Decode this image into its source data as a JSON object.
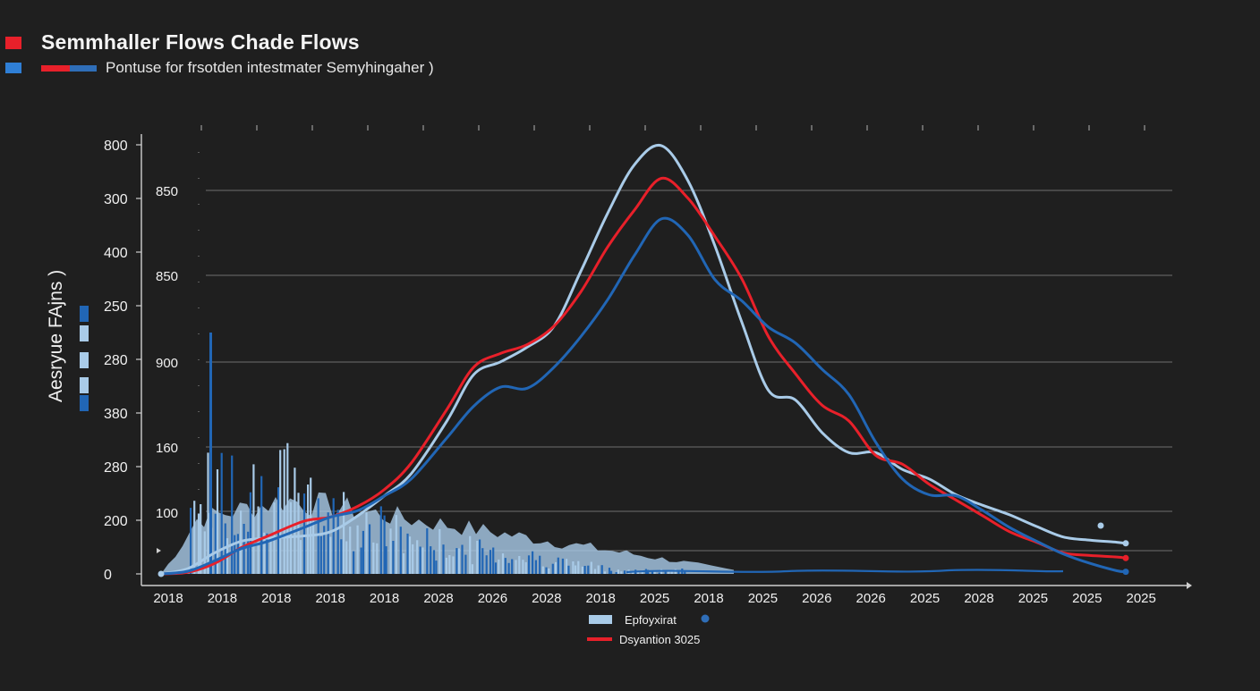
{
  "header": {
    "title": "Semmhaller Flows Chade Flows",
    "subtitle": "Pontuse for frsotden intestmater Semyhingaher )"
  },
  "colors": {
    "background": "#1f1f1f",
    "red": "#e8202a",
    "light_blue": "#a9cbe8",
    "dark_blue": "#2166b5",
    "grid": "#8a8a8a",
    "text": "#f0f0f0"
  },
  "chart_data": {
    "type": "line",
    "title": "Semmhaller Flows Chade Flows",
    "subtitle": "Pontuse for frsotden intestmater Semyhingaher )",
    "ylabel": "Aesryue FAjns )",
    "xlabel": "",
    "ylim": [
      0,
      800
    ],
    "y_outer_ticks": [
      "0",
      "200",
      "280",
      "380",
      "280",
      "250",
      "400",
      "300",
      "800"
    ],
    "y_inner_ticks": [
      "100",
      "160",
      "900",
      "850",
      "850"
    ],
    "x_ticks": [
      "2018",
      "2018",
      "2018",
      "2018",
      "2018",
      "2028",
      "2026",
      "2028",
      "2018",
      "2025",
      "2018",
      "2025",
      "2026",
      "2026",
      "2025",
      "2028",
      "2025",
      "2025",
      "2025"
    ],
    "x": [
      0,
      30,
      60,
      90,
      120,
      160,
      190,
      220,
      250,
      280,
      320,
      350,
      380,
      410,
      440,
      470,
      500,
      530,
      560,
      590,
      620,
      650,
      680,
      710,
      740,
      770,
      800,
      830,
      860,
      890,
      920,
      950,
      980,
      1010,
      1040,
      1070,
      1080
    ],
    "series": [
      {
        "name": "light",
        "color": "#a9cbe8",
        "values": [
          0,
          10,
          40,
          62,
          68,
          72,
          80,
          110,
          148,
          190,
          290,
          378,
          402,
          430,
          470,
          574,
          684,
          776,
          812,
          745,
          622,
          478,
          348,
          330,
          268,
          230,
          230,
          198,
          180,
          150,
          130,
          112,
          90,
          70,
          64,
          60,
          58
        ]
      },
      {
        "name": "red",
        "color": "#e8202a",
        "values": [
          0,
          3,
          20,
          50,
          72,
          100,
          108,
          128,
          160,
          210,
          312,
          392,
          418,
          435,
          470,
          535,
          620,
          690,
          750,
          712,
          640,
          560,
          450,
          380,
          320,
          290,
          225,
          208,
          170,
          140,
          110,
          80,
          60,
          40,
          35,
          32,
          30
        ]
      },
      {
        "name": "dark",
        "color": "#2166b5",
        "values": [
          0,
          5,
          25,
          48,
          62,
          88,
          108,
          120,
          148,
          180,
          258,
          318,
          354,
          352,
          392,
          450,
          520,
          604,
          673,
          642,
          558,
          518,
          468,
          438,
          388,
          340,
          250,
          180,
          150,
          148,
          120,
          88,
          62,
          38,
          20,
          6,
          4
        ]
      }
    ],
    "legend": [
      {
        "label": "Epfoyxirat",
        "color": "#a9cbe8",
        "marker": "#2f6eb8"
      },
      {
        "label": "Dsyantion 3025",
        "color": "#e8202a"
      }
    ],
    "legend_position": "bottom-center",
    "grid": true
  }
}
